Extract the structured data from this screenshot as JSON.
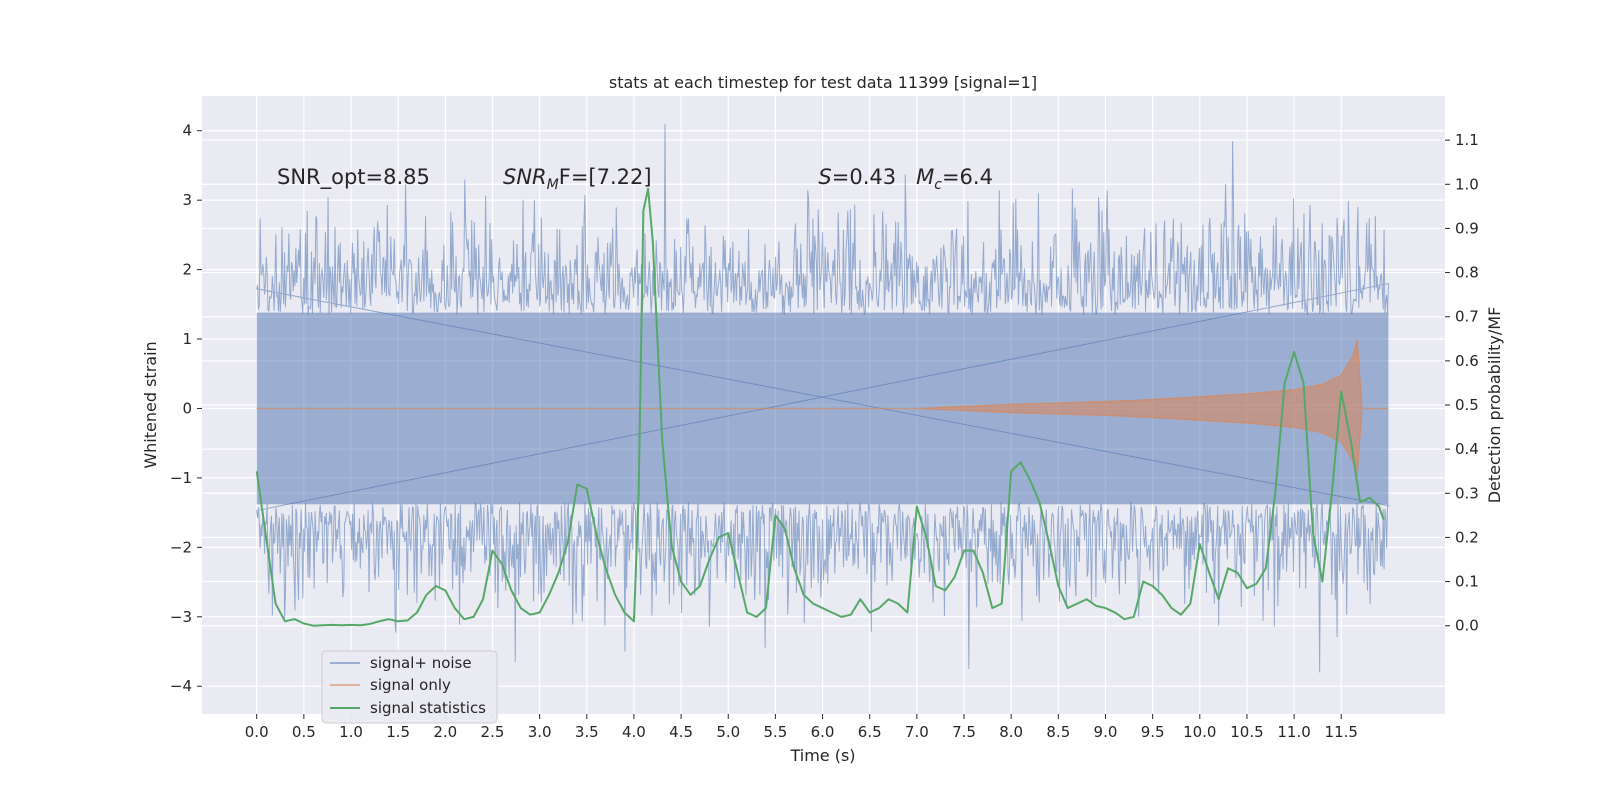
{
  "chart_data": {
    "type": "line",
    "title": "stats at each timestep for test data 11399 [signal=1]",
    "xlabel": "Time (s)",
    "ylabel_left": "Whitened strain",
    "ylabel_right": "Detection probability/MF",
    "xlim": [
      -0.58,
      12.6
    ],
    "ylim_left": [
      -4.4,
      4.5
    ],
    "ylim_right": [
      -0.2,
      1.2
    ],
    "x_ticks": [
      0.0,
      0.5,
      1.0,
      1.5,
      2.0,
      2.5,
      3.0,
      3.5,
      4.0,
      4.5,
      5.0,
      5.5,
      6.0,
      6.5,
      7.0,
      7.5,
      8.0,
      8.5,
      9.0,
      9.5,
      10.0,
      10.5,
      11.0,
      11.5
    ],
    "x_tick_labels": [
      "0.0",
      "0.5",
      "1.0",
      "1.5",
      "2.0",
      "2.5",
      "3.0",
      "3.5",
      "4.0",
      "4.5",
      "5.0",
      "5.5",
      "6.0",
      "6.5",
      "7.0",
      "7.5",
      "8.0",
      "8.5",
      "9.0",
      "9.5",
      "10.0",
      "10.5",
      "11.0",
      "11.5"
    ],
    "y_left_ticks": [
      -4,
      -3,
      -2,
      -1,
      0,
      1,
      2,
      3,
      4
    ],
    "y_left_tick_labels": [
      "−4",
      "−3",
      "−2",
      "−1",
      "0",
      "1",
      "2",
      "3",
      "4"
    ],
    "y_right_ticks": [
      0.0,
      0.1,
      0.2,
      0.3,
      0.4,
      0.5,
      0.6,
      0.7,
      0.8,
      0.9,
      1.0,
      1.1
    ],
    "y_right_tick_labels": [
      "0.0",
      "0.1",
      "0.2",
      "0.3",
      "0.4",
      "0.5",
      "0.6",
      "0.7",
      "0.8",
      "0.9",
      "1.0",
      "1.1"
    ],
    "grid": true,
    "legend_position": "bottom-left",
    "series": [
      {
        "name": "signal+ noise",
        "axis": "left",
        "color": "#4c72b0",
        "alpha": 0.5,
        "time_range": [
          0.0,
          12.0
        ],
        "amplitude_envelope": [
          -4.0,
          4.1
        ],
        "notable_peaks": [
          [
            4.33,
            4.1
          ],
          [
            10.35,
            3.85
          ],
          [
            11.27,
            -3.8
          ],
          [
            7.55,
            -3.75
          ],
          [
            3.9,
            -3.5
          ]
        ]
      },
      {
        "name": "signal only",
        "axis": "left",
        "color": "#dd8452",
        "envelope": {
          "x": [
            0.0,
            7.0,
            7.5,
            8.0,
            8.5,
            9.0,
            9.5,
            10.0,
            10.5,
            11.0,
            11.3,
            11.5,
            11.62,
            11.67,
            11.72,
            12.0
          ],
          "upper": [
            0.0,
            0.0,
            0.03,
            0.06,
            0.08,
            0.1,
            0.13,
            0.17,
            0.21,
            0.27,
            0.35,
            0.48,
            0.75,
            1.0,
            0.0,
            0.0
          ],
          "lower": [
            0.0,
            0.0,
            -0.03,
            -0.06,
            -0.08,
            -0.1,
            -0.13,
            -0.17,
            -0.21,
            -0.27,
            -0.35,
            -0.48,
            -0.75,
            -0.95,
            0.0,
            0.0
          ]
        }
      },
      {
        "name": "signal statistics",
        "axis": "right",
        "color": "#55a868",
        "x": [
          0.0,
          0.1,
          0.2,
          0.3,
          0.4,
          0.5,
          0.6,
          0.7,
          0.8,
          0.9,
          1.0,
          1.1,
          1.2,
          1.3,
          1.4,
          1.5,
          1.6,
          1.7,
          1.8,
          1.9,
          2.0,
          2.1,
          2.2,
          2.3,
          2.4,
          2.5,
          2.6,
          2.7,
          2.8,
          2.9,
          3.0,
          3.1,
          3.2,
          3.3,
          3.4,
          3.5,
          3.6,
          3.7,
          3.8,
          3.9,
          4.0,
          4.05,
          4.1,
          4.15,
          4.2,
          4.3,
          4.4,
          4.5,
          4.6,
          4.7,
          4.8,
          4.9,
          5.0,
          5.1,
          5.2,
          5.3,
          5.4,
          5.5,
          5.6,
          5.7,
          5.8,
          5.9,
          6.0,
          6.1,
          6.2,
          6.3,
          6.4,
          6.5,
          6.6,
          6.7,
          6.8,
          6.9,
          7.0,
          7.1,
          7.2,
          7.3,
          7.4,
          7.5,
          7.6,
          7.7,
          7.8,
          7.9,
          8.0,
          8.1,
          8.2,
          8.3,
          8.4,
          8.5,
          8.6,
          8.7,
          8.8,
          8.9,
          9.0,
          9.1,
          9.2,
          9.3,
          9.4,
          9.5,
          9.6,
          9.7,
          9.8,
          9.9,
          10.0,
          10.1,
          10.2,
          10.3,
          10.4,
          10.5,
          10.6,
          10.7,
          10.8,
          10.9,
          11.0,
          11.1,
          11.2,
          11.3,
          11.4,
          11.5,
          11.6,
          11.7,
          11.8,
          11.9,
          11.95
        ],
        "values": [
          0.35,
          0.2,
          0.05,
          0.01,
          0.015,
          0.005,
          0.0,
          0.001,
          0.002,
          0.001,
          0.002,
          0.001,
          0.004,
          0.01,
          0.015,
          0.01,
          0.012,
          0.03,
          0.07,
          0.09,
          0.08,
          0.04,
          0.015,
          0.02,
          0.06,
          0.17,
          0.14,
          0.08,
          0.04,
          0.025,
          0.03,
          0.07,
          0.12,
          0.19,
          0.32,
          0.31,
          0.21,
          0.13,
          0.07,
          0.03,
          0.01,
          0.3,
          0.94,
          0.99,
          0.87,
          0.42,
          0.18,
          0.1,
          0.07,
          0.09,
          0.15,
          0.2,
          0.21,
          0.12,
          0.03,
          0.02,
          0.04,
          0.25,
          0.22,
          0.13,
          0.07,
          0.05,
          0.04,
          0.03,
          0.02,
          0.025,
          0.06,
          0.03,
          0.04,
          0.06,
          0.05,
          0.03,
          0.27,
          0.2,
          0.09,
          0.08,
          0.11,
          0.17,
          0.17,
          0.12,
          0.04,
          0.05,
          0.35,
          0.37,
          0.33,
          0.28,
          0.19,
          0.09,
          0.04,
          0.05,
          0.06,
          0.045,
          0.04,
          0.03,
          0.015,
          0.02,
          0.1,
          0.09,
          0.07,
          0.04,
          0.025,
          0.05,
          0.185,
          0.12,
          0.06,
          0.13,
          0.12,
          0.085,
          0.095,
          0.13,
          0.3,
          0.55,
          0.62,
          0.55,
          0.21,
          0.1,
          0.3,
          0.53,
          0.42,
          0.28,
          0.29,
          0.27,
          0.24
        ]
      }
    ],
    "annotations": [
      {
        "id": "snr_opt",
        "x": 0.2,
        "y": 3.3,
        "text": "SNR_opt=8.85"
      },
      {
        "id": "snr_mf",
        "x": 2.6,
        "y": 3.3,
        "text": "SNR_MF=[7.22]",
        "parts": [
          "SNR",
          "M",
          "F=[7.22]"
        ]
      },
      {
        "id": "s_mc",
        "x": 5.6,
        "y": 3.3,
        "text": "S=0.43   M_c=6.4",
        "parts": [
          "S",
          "=0.43   ",
          "M",
          "c",
          "=6.4"
        ]
      }
    ]
  }
}
